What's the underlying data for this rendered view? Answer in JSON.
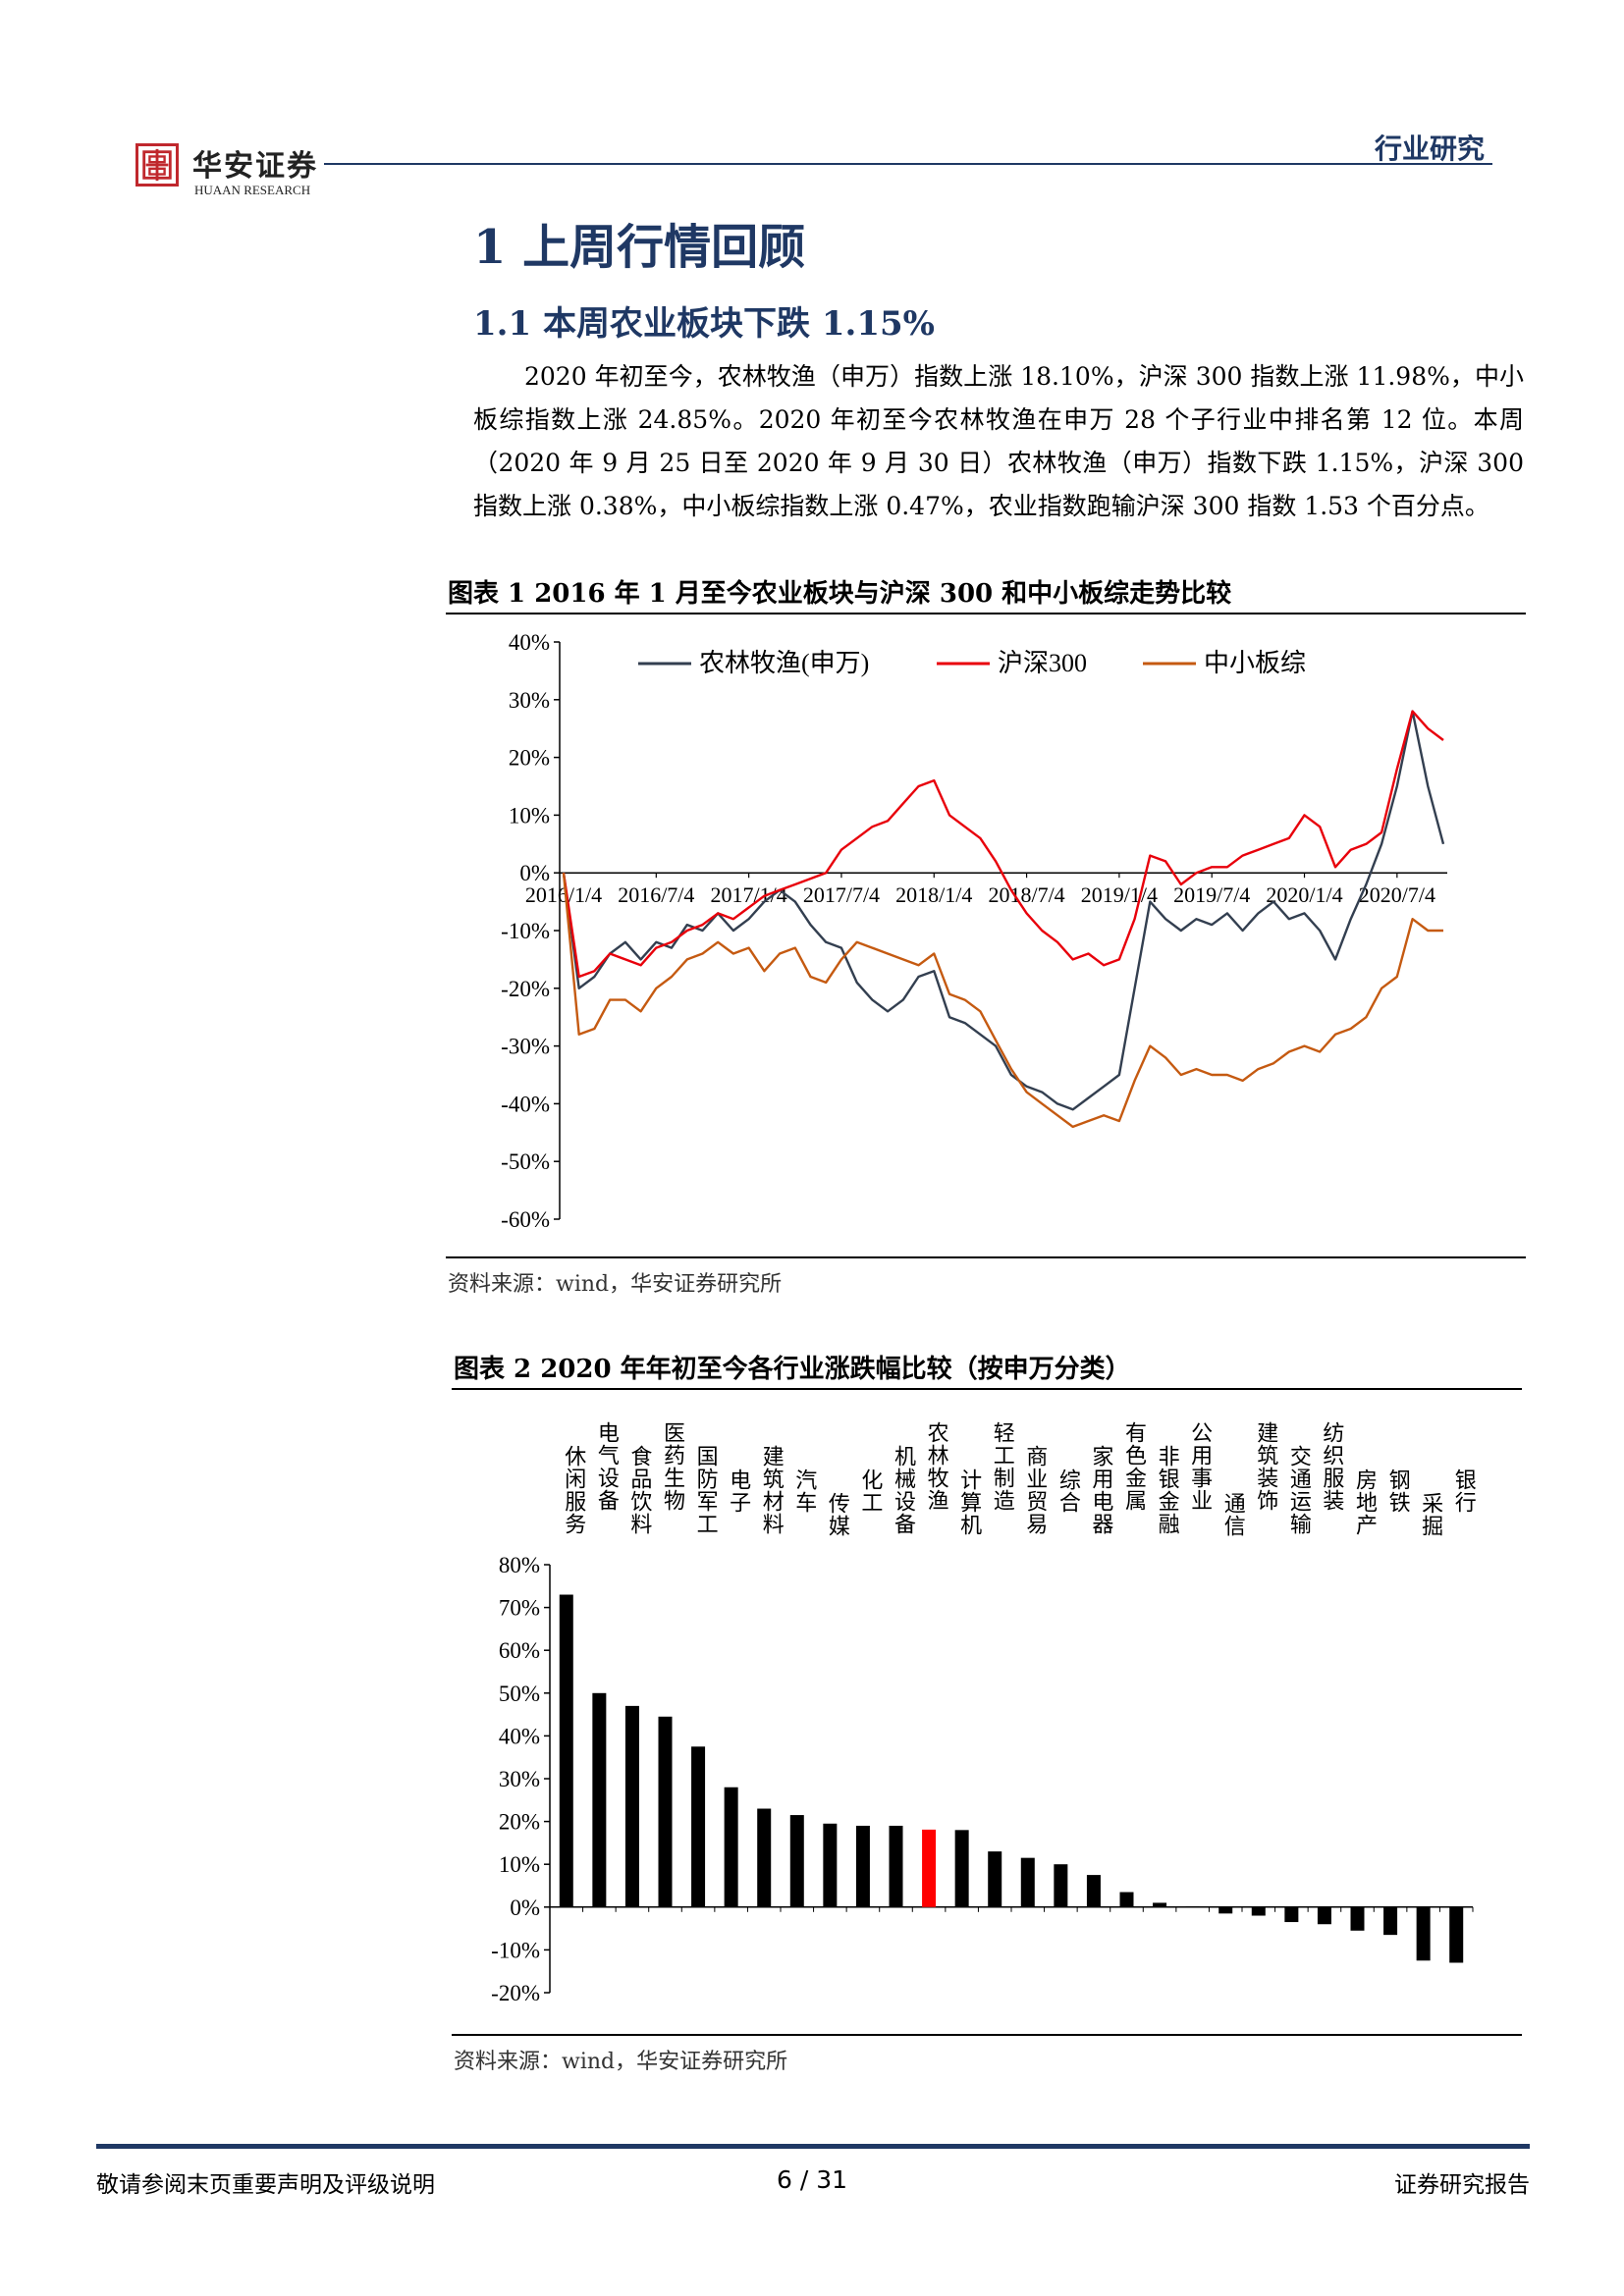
{
  "header": {
    "logo_cn": "华安证券",
    "logo_en": "HUAAN RESEARCH",
    "section": "行业研究",
    "logo_icon": "seal-icon",
    "logo_color": "#c0282d"
  },
  "heading1": "1 上周行情回顾",
  "heading2": "1.1 本周农业板块下跌 1.15%",
  "paragraph": "2020 年初至今，农林牧渔（申万）指数上涨 18.10%，沪深 300 指数上涨 11.98%，中小板综指数上涨 24.85%。2020 年初至今农林牧渔在申万 28 个子行业中排名第 12 位。本周（2020 年 9 月 25 日至 2020 年 9 月 30 日）农林牧渔（申万）指数下跌 1.15%，沪深 300 指数上涨 0.38%，中小板综指数上涨 0.47%，农业指数跑输沪深 300 指数 1.53 个百分点。",
  "figure1": {
    "caption": "图表 1 2016 年 1 月至今农业板块与沪深 300 和中小板综走势比较",
    "source": "资料来源：wind，华安证券研究所"
  },
  "figure2": {
    "caption": "图表 2 2020 年年初至今各行业涨跌幅比较（按申万分类）",
    "source": "资料来源：wind，华安证券研究所"
  },
  "chart_data": [
    {
      "type": "line",
      "title": "",
      "ylim": [
        -60,
        40
      ],
      "y_ticks": [
        "40%",
        "30%",
        "20%",
        "10%",
        "0%",
        "-10%",
        "-20%",
        "-30%",
        "-40%",
        "-50%",
        "-60%"
      ],
      "x_ticks": [
        "2016/1/4",
        "2016/7/4",
        "2017/1/4",
        "2017/7/4",
        "2018/1/4",
        "2018/7/4",
        "2019/1/4",
        "2019/7/4",
        "2020/1/4",
        "2020/7/4"
      ],
      "x": [
        "2016/1/4",
        "2016/2/1",
        "2016/3/1",
        "2016/4/1",
        "2016/5/1",
        "2016/6/1",
        "2016/7/4",
        "2016/8/1",
        "2016/9/1",
        "2016/10/1",
        "2016/11/1",
        "2016/12/1",
        "2017/1/4",
        "2017/2/1",
        "2017/3/1",
        "2017/4/1",
        "2017/5/1",
        "2017/6/1",
        "2017/7/4",
        "2017/8/1",
        "2017/9/1",
        "2017/10/1",
        "2017/11/1",
        "2017/12/1",
        "2018/1/4",
        "2018/2/1",
        "2018/3/1",
        "2018/4/1",
        "2018/5/1",
        "2018/6/1",
        "2018/7/4",
        "2018/8/1",
        "2018/9/1",
        "2018/10/1",
        "2018/11/1",
        "2018/12/1",
        "2019/1/4",
        "2019/2/1",
        "2019/3/1",
        "2019/4/1",
        "2019/5/1",
        "2019/6/1",
        "2019/7/4",
        "2019/8/1",
        "2019/9/1",
        "2019/10/1",
        "2019/11/1",
        "2019/12/1",
        "2020/1/4",
        "2020/2/1",
        "2020/3/1",
        "2020/4/1",
        "2020/5/1",
        "2020/6/1",
        "2020/7/4",
        "2020/8/1",
        "2020/9/1",
        "2020/9/30"
      ],
      "legend_position": "top",
      "grid": false,
      "series": [
        {
          "name": "农林牧渔(申万)",
          "color": "#333f50",
          "values": [
            0,
            -20,
            -18,
            -14,
            -12,
            -15,
            -12,
            -13,
            -9,
            -10,
            -7,
            -10,
            -8,
            -5,
            -3,
            -5,
            -9,
            -12,
            -13,
            -19,
            -22,
            -24,
            -22,
            -18,
            -17,
            -25,
            -26,
            -28,
            -30,
            -35,
            -37,
            -38,
            -40,
            -41,
            -39,
            -37,
            -35,
            -20,
            -5,
            -8,
            -10,
            -8,
            -9,
            -7,
            -10,
            -7,
            -5,
            -8,
            -7,
            -10,
            -15,
            -8,
            -2,
            5,
            15,
            28,
            15,
            5
          ]
        },
        {
          "name": "沪深300",
          "color": "#e8000b",
          "values": [
            0,
            -18,
            -17,
            -14,
            -15,
            -16,
            -13,
            -12,
            -10,
            -9,
            -7,
            -8,
            -6,
            -4,
            -3,
            -2,
            -1,
            0,
            4,
            6,
            8,
            9,
            12,
            15,
            16,
            10,
            8,
            6,
            2,
            -3,
            -7,
            -10,
            -12,
            -15,
            -14,
            -16,
            -15,
            -8,
            3,
            2,
            -2,
            0,
            1,
            1,
            3,
            4,
            5,
            6,
            10,
            8,
            1,
            4,
            5,
            7,
            18,
            28,
            25,
            23
          ]
        },
        {
          "name": "中小板综",
          "color": "#c55a11",
          "values": [
            0,
            -28,
            -27,
            -22,
            -22,
            -24,
            -20,
            -18,
            -15,
            -14,
            -12,
            -14,
            -13,
            -17,
            -14,
            -13,
            -18,
            -19,
            -15,
            -12,
            -13,
            -14,
            -15,
            -16,
            -14,
            -21,
            -22,
            -24,
            -29,
            -34,
            -38,
            -40,
            -42,
            -44,
            -43,
            -42,
            -43,
            -36,
            -30,
            -32,
            -35,
            -34,
            -35,
            -35,
            -36,
            -34,
            -33,
            -31,
            -30,
            -31,
            -28,
            -27,
            -25,
            -20,
            -18,
            -8,
            -10,
            -10
          ]
        }
      ]
    },
    {
      "type": "bar",
      "title": "",
      "ylim": [
        -20,
        80
      ],
      "y_ticks": [
        "80%",
        "70%",
        "60%",
        "50%",
        "40%",
        "30%",
        "20%",
        "10%",
        "0%",
        "-10%",
        "-20%"
      ],
      "categories": [
        "休闲服务",
        "电气设备",
        "食品饮料",
        "医药生物",
        "国防军工",
        "电子",
        "建筑材料",
        "汽车",
        "传媒",
        "化工",
        "机械设备",
        "农林牧渔",
        "计算机",
        "轻工制造",
        "商业贸易",
        "综合",
        "家用电器",
        "有色金属",
        "非银金融",
        "公用事业",
        "通信",
        "建筑装饰",
        "交通运输",
        "纺织服装",
        "房地产",
        "钢铁",
        "采掘",
        "银行"
      ],
      "values": [
        73,
        50,
        47,
        44.5,
        37.5,
        28,
        23,
        21.5,
        19.5,
        19,
        19,
        18.1,
        18,
        13,
        11.5,
        10,
        7.5,
        3.5,
        1,
        0.2,
        -1.5,
        -2,
        -3.5,
        -4,
        -5.5,
        -6.5,
        -12.5,
        -13
      ],
      "highlight": "农林牧渔",
      "bar_color": "#000000",
      "highlight_color": "#ff0000"
    }
  ],
  "footer": {
    "left": "敬请参阅末页重要声明及评级说明",
    "page": "6 / 31",
    "right": "证券研究报告"
  }
}
